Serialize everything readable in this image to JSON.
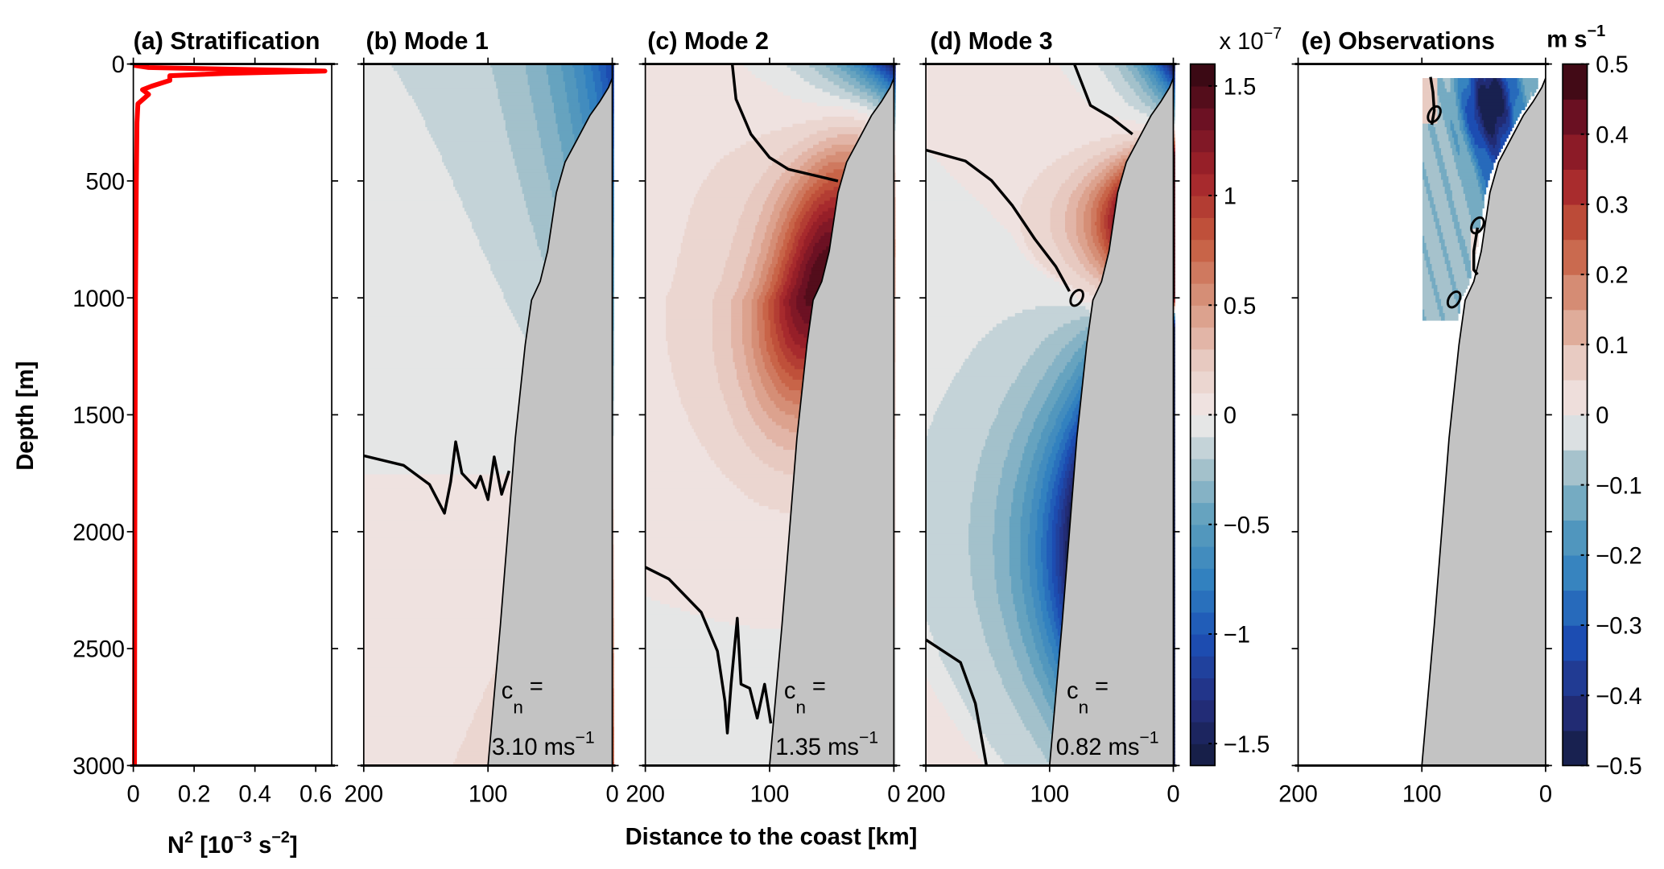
{
  "axes": {
    "ylabel": "Depth [m]",
    "xlabel": "Distance to the coast [km]",
    "a_xlabel": {
      "base": "N",
      "sup1": "2",
      "mid": " [10",
      "sup2": "−3",
      "mid2": " s",
      "sup3": "−2",
      "end": "]"
    },
    "depth_ticks": [
      "0",
      "500",
      "1000",
      "1500",
      "2000",
      "2500",
      "3000"
    ],
    "depth_tick_values": [
      0,
      500,
      1000,
      1500,
      2000,
      2500,
      3000
    ],
    "ylim": [
      3000,
      0
    ]
  },
  "colorbar_modes": {
    "multiplier": {
      "base": "x 10",
      "sup": "−7"
    },
    "range": [
      -1.6,
      1.6
    ],
    "step": 0.1,
    "ticks": [
      1.5,
      1,
      0.5,
      0,
      -0.5,
      -1,
      -1.5
    ],
    "tick_labels": [
      "1.5",
      "1",
      "0.5",
      "0",
      "−0.5",
      "−1",
      "−1.5"
    ]
  },
  "colorbar_obs": {
    "unit": {
      "base": "m s",
      "sup": "−1"
    },
    "range": [
      -0.5,
      0.5
    ],
    "step": 0.05,
    "ticks": [
      0.5,
      0.4,
      0.3,
      0.2,
      0.1,
      0,
      -0.1,
      -0.2,
      -0.3,
      -0.4,
      -0.5
    ],
    "tick_labels": [
      "0.5",
      "0.4",
      "0.3",
      "0.2",
      "0.1",
      "0",
      "−0.1",
      "−0.2",
      "−0.3",
      "−0.4",
      "−0.5"
    ]
  },
  "colors": {
    "profile": "#ff0000",
    "land": "#c3c3c3",
    "contour": "#000000",
    "colormap": [
      [
        -1,
        "#141c3e"
      ],
      [
        -0.82,
        "#242e7e"
      ],
      [
        -0.64,
        "#1c4fb5"
      ],
      [
        -0.48,
        "#2f7fbf"
      ],
      [
        -0.3,
        "#5d9fbd"
      ],
      [
        -0.15,
        "#a6c2cc"
      ],
      [
        -0.03,
        "#e6e6e6"
      ],
      [
        0.03,
        "#efe2e0"
      ],
      [
        0.15,
        "#e8cbc2"
      ],
      [
        0.3,
        "#da9c86"
      ],
      [
        0.5,
        "#c55a3d"
      ],
      [
        0.68,
        "#a3232a"
      ],
      [
        0.84,
        "#6e1123"
      ],
      [
        1,
        "#2e0710"
      ]
    ]
  },
  "chart_data": [
    {
      "type": "line",
      "title": "(a) Stratification",
      "xlabel": "N² [10⁻³ s⁻²]",
      "ylabel": "Depth [m]",
      "xlim": [
        0,
        0.65
      ],
      "ylim": [
        3000,
        0
      ],
      "xticks": [
        "0",
        "0.2",
        "0.4",
        "0.6"
      ],
      "xtick_values": [
        0,
        0.2,
        0.4,
        0.6
      ],
      "profile": [
        [
          0.0,
          5
        ],
        [
          0.05,
          15
        ],
        [
          0.63,
          30
        ],
        [
          0.3,
          40
        ],
        [
          0.12,
          50
        ],
        [
          0.12,
          70
        ],
        [
          0.06,
          95
        ],
        [
          0.03,
          110
        ],
        [
          0.05,
          130
        ],
        [
          0.015,
          170
        ],
        [
          0.012,
          250
        ],
        [
          0.01,
          500
        ],
        [
          0.007,
          1000
        ],
        [
          0.005,
          2000
        ],
        [
          0.004,
          3000
        ]
      ]
    },
    {
      "type": "heatmap",
      "title": "(b) Mode 1",
      "xlim": [
        200,
        0
      ],
      "xticks": [
        "200",
        "100",
        "0"
      ],
      "cn_label": {
        "c": "c",
        "sub": "n",
        "eq": "=",
        "value": "3.10 ms",
        "sup": "−1"
      },
      "zero_contours": [
        [
          [
            200,
            1675
          ],
          [
            168,
            1716
          ],
          [
            147,
            1798
          ],
          [
            135,
            1921
          ],
          [
            130,
            1787
          ],
          [
            126,
            1616
          ],
          [
            121,
            1750
          ],
          [
            110,
            1812
          ],
          [
            106,
            1763
          ],
          [
            100,
            1863
          ],
          [
            95,
            1680
          ],
          [
            89,
            1840
          ],
          [
            83,
            1740
          ]
        ]
      ]
    },
    {
      "type": "heatmap",
      "title": "(c) Mode 2",
      "xlim": [
        200,
        0
      ],
      "xticks": [
        "200",
        "100",
        "0"
      ],
      "cn_label": {
        "c": "c",
        "sub": "n",
        "eq": "=",
        "value": "1.35 ms",
        "sup": "−1"
      },
      "zero_contours": [
        [
          [
            130,
            0
          ],
          [
            127,
            150
          ],
          [
            115,
            300
          ],
          [
            100,
            400
          ],
          [
            85,
            450
          ],
          [
            65,
            475
          ],
          [
            45,
            500
          ]
        ],
        [
          [
            200,
            2152
          ],
          [
            181,
            2202
          ],
          [
            155,
            2345
          ],
          [
            142,
            2511
          ],
          [
            136,
            2724
          ],
          [
            134,
            2861
          ],
          [
            131,
            2652
          ],
          [
            126,
            2370
          ],
          [
            123,
            2652
          ],
          [
            116,
            2670
          ],
          [
            110,
            2797
          ],
          [
            104,
            2652
          ],
          [
            99,
            2820
          ]
        ]
      ]
    },
    {
      "type": "heatmap",
      "title": "(d) Mode 3",
      "xlim": [
        200,
        0
      ],
      "xticks": [
        "200",
        "100",
        "0"
      ],
      "cn_label": {
        "c": "c",
        "sub": "n",
        "eq": "=",
        "value": "0.82 ms",
        "sup": "−1"
      },
      "zero_contours": [
        [
          [
            80,
            0
          ],
          [
            67,
            177
          ],
          [
            50,
            230
          ],
          [
            33,
            300
          ]
        ],
        [
          [
            200,
            368
          ],
          [
            168,
            415
          ],
          [
            147,
            498
          ],
          [
            130,
            606
          ],
          [
            112,
            748
          ],
          [
            95,
            866
          ],
          [
            84,
            972
          ]
        ],
        [
          [
            200,
            2462
          ],
          [
            172,
            2559
          ],
          [
            160,
            2734
          ],
          [
            151,
            3000
          ]
        ]
      ],
      "loops": [
        [
          78,
          1000
        ]
      ]
    },
    {
      "type": "heatmap",
      "title": "(e) Observations",
      "xlim": [
        200,
        0
      ],
      "xticks": [
        "200",
        "100",
        "0"
      ],
      "zero_contours": [
        [
          [
            93,
            55
          ],
          [
            91,
            120
          ],
          [
            90,
            200
          ],
          [
            92,
            260
          ]
        ],
        [
          [
            55,
            700
          ],
          [
            58,
            800
          ],
          [
            58,
            880
          ],
          [
            55,
            900
          ]
        ]
      ],
      "loops": [
        [
          90,
          215
        ],
        [
          55,
          690
        ],
        [
          74,
          1007
        ]
      ]
    }
  ],
  "bathymetry": [
    [
      0,
      60
    ],
    [
      3,
      100
    ],
    [
      10,
      160
    ],
    [
      18,
      220
    ],
    [
      28,
      320
    ],
    [
      38,
      420
    ],
    [
      45,
      550
    ],
    [
      52,
      800
    ],
    [
      58,
      930
    ],
    [
      65,
      1010
    ],
    [
      70,
      1200
    ],
    [
      78,
      1600
    ],
    [
      84,
      2000
    ],
    [
      90,
      2400
    ],
    [
      95,
      2700
    ],
    [
      100,
      3000
    ]
  ]
}
